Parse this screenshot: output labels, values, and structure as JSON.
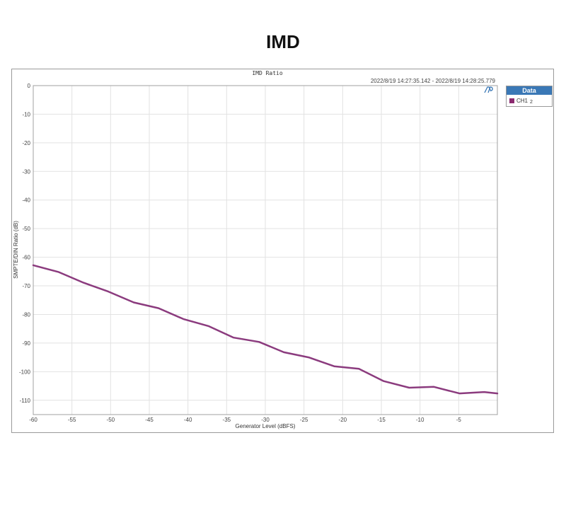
{
  "page": {
    "title": "IMD"
  },
  "plot": {
    "inner_title": "IMD Ratio",
    "timestamp": "2022/8/19 14:27:35.142 -   2022/8/19 14:28:25.779",
    "logo_icon": "ap-logo-icon"
  },
  "legend": {
    "header": "Data",
    "entries": [
      {
        "label": "CH1",
        "sub": "2",
        "color": "#8b2a6f"
      }
    ]
  },
  "colors": {
    "line": "#8b3b7e",
    "grid": "#e2e2e2",
    "legend_header": "#3a78b6"
  },
  "chart_data": {
    "type": "line",
    "xlabel": "Generator Level (dBFS)",
    "ylabel": "SMPTE/DIN Ratio (dB)",
    "xlim": [
      -60,
      0
    ],
    "ylim": [
      -115,
      0
    ],
    "xticks": [
      -60,
      -55,
      -50,
      -45,
      -40,
      -35,
      -30,
      -25,
      -20,
      -15,
      -10,
      -5
    ],
    "yticks": [
      0,
      -10,
      -20,
      -30,
      -40,
      -50,
      -60,
      -70,
      -80,
      -90,
      -100,
      -110
    ],
    "grid": true,
    "legend_position": "right",
    "series": [
      {
        "name": "CH1",
        "x": [
          -60,
          -56.7,
          -53.5,
          -50.3,
          -47,
          -43.8,
          -40.6,
          -37.3,
          -34.1,
          -30.8,
          -27.6,
          -24.4,
          -21.1,
          -17.9,
          -14.7,
          -11.4,
          -8.2,
          -4.9,
          -1.7,
          0
        ],
        "y": [
          -62.8,
          -65.2,
          -68.9,
          -72,
          -75.8,
          -77.8,
          -81.6,
          -84.1,
          -88.1,
          -89.6,
          -93.2,
          -95,
          -98.1,
          -99,
          -103.3,
          -105.6,
          -105.3,
          -107.6,
          -107.1,
          -107.6
        ]
      }
    ]
  }
}
